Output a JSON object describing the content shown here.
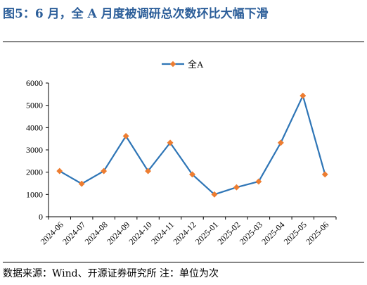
{
  "figure": {
    "title": "图5：6 月，全 A 月度被调研总次数环比大幅下滑",
    "source": "数据来源：Wind、开源证券研究所  注：单位为次"
  },
  "chart_data": {
    "type": "line",
    "title": "",
    "xlabel": "",
    "ylabel": "",
    "categories": [
      "2024-06",
      "2024-07",
      "2024-08",
      "2024-09",
      "2024-10",
      "2024-11",
      "2024-12",
      "2025-01",
      "2025-02",
      "2025-03",
      "2025-04",
      "2025-05",
      "2025-06"
    ],
    "series": [
      {
        "name": "全A",
        "values": [
          2050,
          1480,
          2050,
          3620,
          2050,
          3320,
          1900,
          1000,
          1320,
          1580,
          3320,
          5430,
          1900
        ],
        "line_color": "#2E75B6",
        "marker_color": "#ED7D31"
      }
    ],
    "ylim": [
      0,
      6000
    ],
    "yticks": [
      0,
      1000,
      2000,
      3000,
      4000,
      5000,
      6000
    ],
    "ytick_labels": [
      "0",
      "1000",
      "2000",
      "3000",
      "4000",
      "5000",
      "6000"
    ],
    "grid": false,
    "legend_position": "top-center"
  }
}
